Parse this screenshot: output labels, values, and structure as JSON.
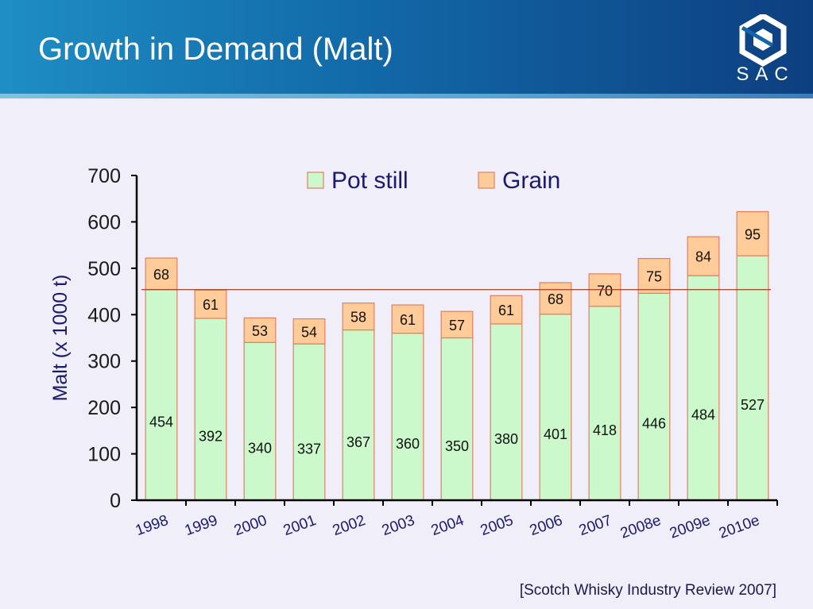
{
  "slide": {
    "title": "Growth in Demand (Malt)",
    "logo_text": "SAC",
    "source": "[Scotch Whisky Industry Review 2007]"
  },
  "colors": {
    "pot_still": "#ccf9cc",
    "grain": "#ffcc99",
    "bar_stroke": "#e08060",
    "reference_line": "#a04020",
    "axis": "#000000",
    "ylabel": "#1a1a6e"
  },
  "chart_data": {
    "type": "bar",
    "stacked": true,
    "title": "",
    "xlabel": "",
    "ylabel": "Malt (x 1000 t)",
    "ylim": [
      0,
      700
    ],
    "yticks": [
      0,
      100,
      200,
      300,
      400,
      500,
      600,
      700
    ],
    "categories": [
      "1998",
      "1999",
      "2000",
      "2001",
      "2002",
      "2003",
      "2004",
      "2005",
      "2006",
      "2007",
      "2008e",
      "2009e",
      "2010e"
    ],
    "series": [
      {
        "name": "Pot still",
        "values": [
          454,
          392,
          340,
          337,
          367,
          360,
          350,
          380,
          401,
          418,
          446,
          484,
          527
        ]
      },
      {
        "name": "Grain",
        "values": [
          68,
          61,
          53,
          54,
          58,
          61,
          57,
          61,
          68,
          70,
          75,
          84,
          95
        ]
      }
    ],
    "reference_line_value": 454,
    "legend": "top-center",
    "grid": false
  }
}
